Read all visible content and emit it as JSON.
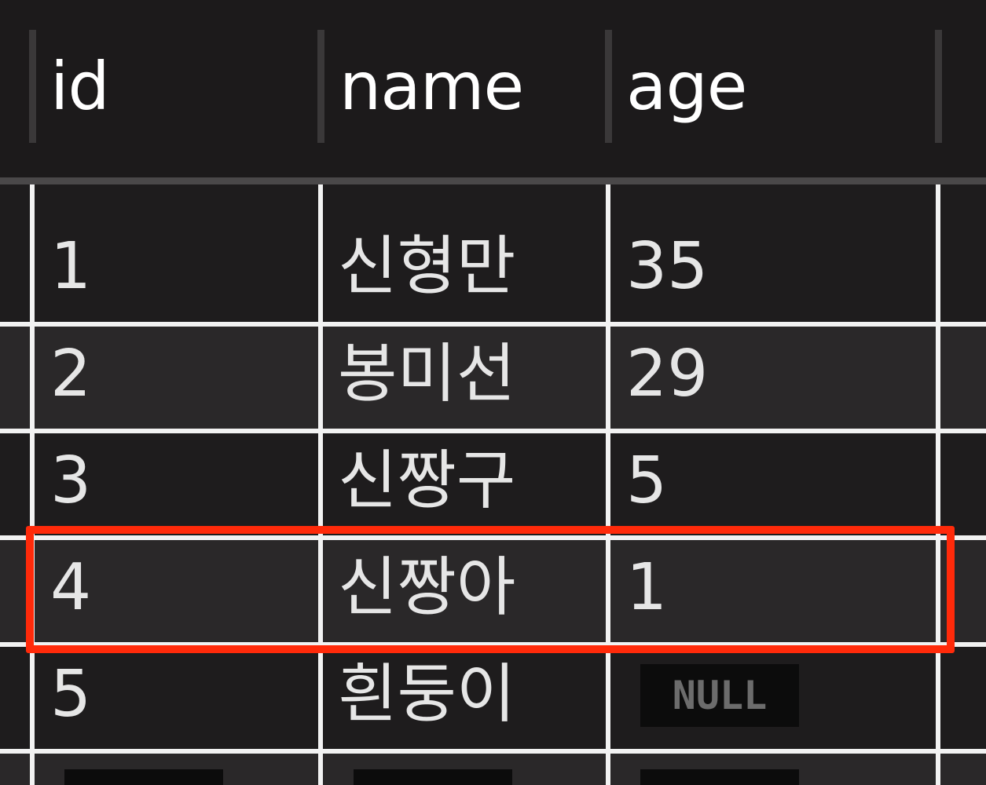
{
  "table": {
    "columns": [
      {
        "label": "id"
      },
      {
        "label": "name"
      },
      {
        "label": "age"
      }
    ],
    "rows": [
      {
        "id": "1",
        "name": "신형만",
        "age": "35"
      },
      {
        "id": "2",
        "name": "봉미선",
        "age": "29"
      },
      {
        "id": "3",
        "name": "신짱구",
        "age": "5"
      },
      {
        "id": "4",
        "name": "신짱아",
        "age": "1"
      },
      {
        "id": "5",
        "name": "흰둥이",
        "age": "NULL"
      }
    ],
    "highlighted_row": 4
  },
  "colors": {
    "background": "#1c1a1b",
    "row_alt": "#2a2829",
    "grid_line": "#f2f2f2",
    "highlight": "#ff2a0a",
    "null_badge": "#0c0c0c"
  }
}
